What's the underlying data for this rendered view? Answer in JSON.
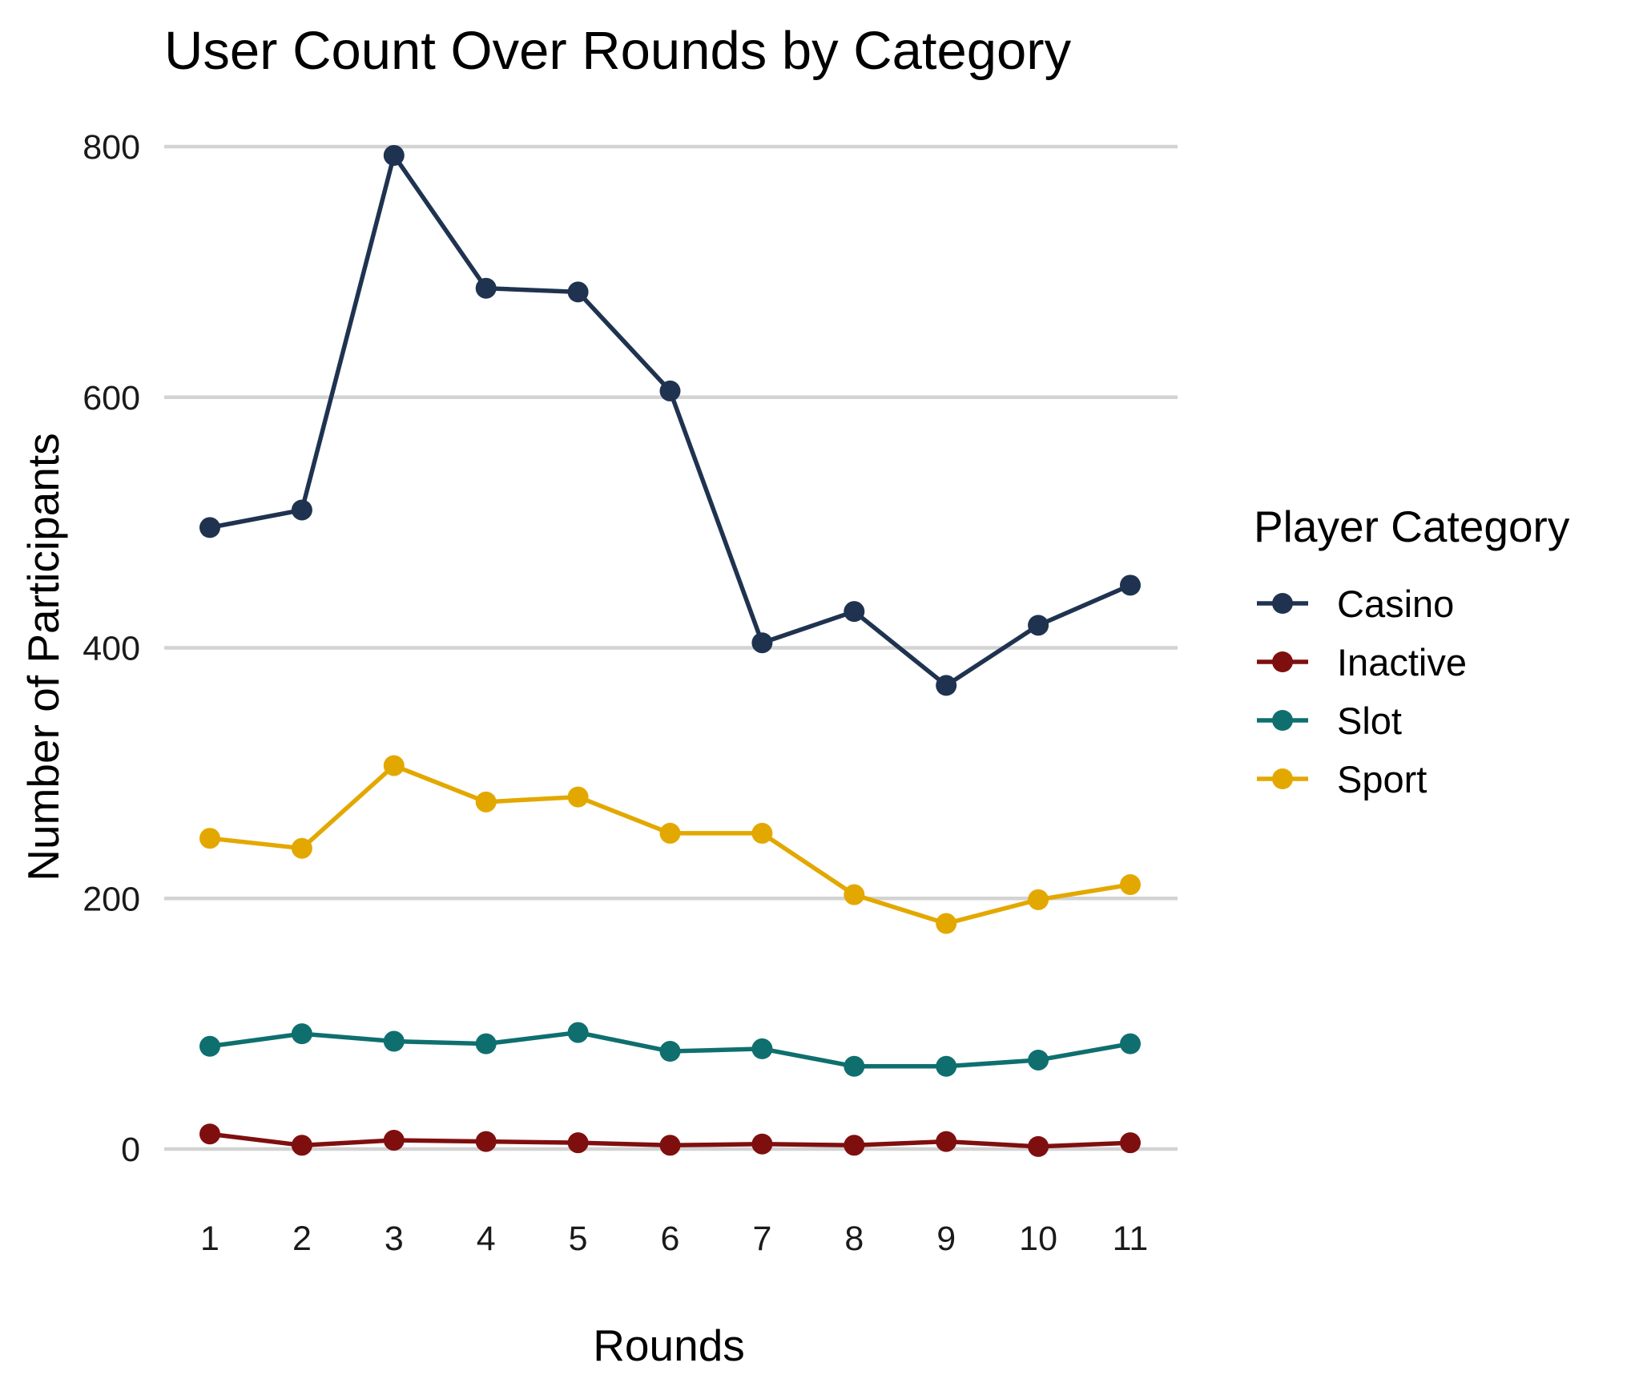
{
  "chart_data": {
    "type": "line",
    "title": "User Count Over Rounds by Category",
    "xlabel": "Rounds",
    "ylabel": "Number of Participants",
    "x": [
      1,
      2,
      3,
      4,
      5,
      6,
      7,
      8,
      9,
      10,
      11
    ],
    "ylim": [
      0,
      800
    ],
    "yticks": [
      0,
      200,
      400,
      600,
      800
    ],
    "grid": "horizontal-major",
    "legend": {
      "title": "Player Category",
      "position": "right"
    },
    "series": [
      {
        "name": "Casino",
        "color": "#1f3350",
        "values": [
          496,
          510,
          793,
          687,
          684,
          605,
          404,
          429,
          370,
          418,
          450
        ]
      },
      {
        "name": "Inactive",
        "color": "#7f0f0f",
        "values": [
          12,
          3,
          7,
          6,
          5,
          3,
          4,
          3,
          6,
          2,
          5
        ]
      },
      {
        "name": "Slot",
        "color": "#0f6f6f",
        "values": [
          82,
          92,
          86,
          84,
          93,
          78,
          80,
          66,
          66,
          71,
          84
        ]
      },
      {
        "name": "Sport",
        "color": "#e3a800",
        "values": [
          248,
          240,
          306,
          277,
          281,
          252,
          252,
          203,
          180,
          199,
          211
        ]
      }
    ]
  }
}
